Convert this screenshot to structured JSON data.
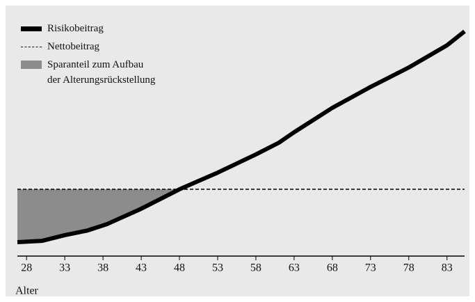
{
  "chart_data": {
    "type": "line",
    "x_label": "Alter",
    "x": [
      26.8,
      30,
      33,
      36,
      38.5,
      43,
      48,
      53,
      58,
      61,
      63,
      68,
      73,
      78,
      83,
      85.3
    ],
    "series": [
      {
        "name": "Risikobeitrag",
        "color": "#000000",
        "style": "solid",
        "values": [
          5.6,
          6.1,
          8.4,
          10.3,
          12.8,
          19.0,
          26.8,
          33.5,
          40.8,
          45.5,
          49.7,
          59.5,
          67.9,
          75.7,
          84.6,
          90.2
        ]
      },
      {
        "name": "Nettobeitrag",
        "color": "#000000",
        "style": "dashed",
        "values": [
          26.8,
          26.8,
          26.8,
          26.8,
          26.8,
          26.8,
          26.8,
          26.8,
          26.8,
          26.8,
          26.8,
          26.8,
          26.8,
          26.8,
          26.8,
          26.8
        ]
      }
    ],
    "area": {
      "name": "Sparanteil zum Aufbau\nder Alterungsrückstellung",
      "color": "#8c8c8c"
    },
    "xlim": [
      26.8,
      85.3
    ],
    "ylim": [
      0,
      100
    ],
    "xticks": [
      28,
      33,
      38,
      43,
      48,
      53,
      58,
      63,
      68,
      73,
      78,
      83
    ]
  }
}
